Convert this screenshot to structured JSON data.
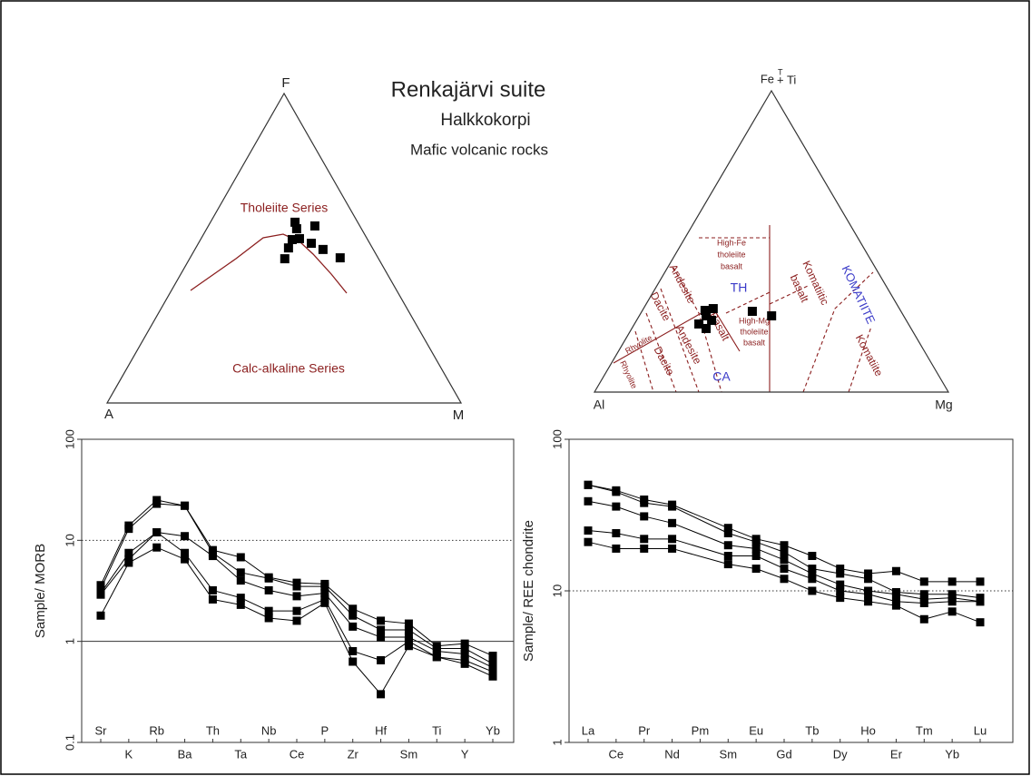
{
  "header": {
    "title": "Renkajärvi suite",
    "subtitle": "Halkkokorpi",
    "caption": "Mafic volcanic rocks"
  },
  "chart_data": [
    {
      "type": "ternary",
      "labels": {
        "top": "F",
        "left": "A",
        "right": "M"
      },
      "top": [
        58.4,
        56.3,
        57.2,
        53.1,
        52.8,
        51.6,
        50.1,
        49.6,
        46.6,
        46.9
      ],
      "left": [
        17.7,
        18.3,
        12.7,
        19.1,
        21.3,
        16.5,
        23.7,
        14.2,
        26.5,
        10.7
      ],
      "right": [
        23.9,
        25.4,
        30.1,
        27.8,
        25.9,
        31.9,
        26.2,
        36.2,
        26.9,
        42.4
      ],
      "color": "#000000",
      "field_labels": [
        "Tholeiite Series",
        "Calc-alkaline Series"
      ]
    },
    {
      "type": "ternary",
      "labels": {
        "top": "Fe",
        "top_sup": "T",
        "top_suffix": "+ Ti",
        "left": "Al",
        "right": "Mg"
      },
      "top": [
        27.1,
        27.7,
        25.3,
        23.8,
        22.6,
        21.1,
        26.8,
        25.3
      ],
      "left": [
        55.2,
        52.6,
        55.8,
        55.0,
        59.2,
        57.9,
        42.0,
        37.3
      ],
      "right": [
        17.7,
        19.7,
        18.9,
        21.2,
        18.2,
        21.0,
        31.2,
        37.4
      ],
      "color": "#000000",
      "field_labels": [
        "Rhyolite",
        "Rhyolite",
        "Dacite",
        "Dacite",
        "Andesite",
        "Andesite",
        "Basalt",
        "High-Fe",
        "tholeiite",
        "basalt",
        "TH",
        "High-Mg",
        "tholeiite",
        "basalt",
        "Komatiitic",
        "basalt",
        "KOMATIITE",
        "Komatiite",
        "CA"
      ]
    },
    {
      "type": "spider",
      "ylabel": "Sample/ MORB",
      "log_scale": true,
      "color": "#000000",
      "categories": [
        "Sr",
        "K",
        "Rb",
        "Ba",
        "Th",
        "Ta",
        "Nb",
        "Ce",
        "P",
        "Zr",
        "Hf",
        "Sm",
        "Ti",
        "Y",
        "Yb"
      ],
      "ylim": [
        0.1,
        100
      ],
      "yticks": [
        0.1,
        1,
        10,
        100
      ],
      "reference_lines": [
        {
          "value": 1,
          "style": "solid"
        },
        {
          "value": 10,
          "style": "dotted"
        }
      ],
      "series": [
        {
          "values": [
            3.6,
            14,
            25,
            22,
            8,
            6.8,
            4.3,
            3.8,
            3.7,
            2.1,
            1.6,
            1.5,
            0.9,
            0.95,
            0.72
          ]
        },
        {
          "values": [
            3.3,
            13,
            23,
            22,
            7.5,
            4.8,
            4.2,
            3.5,
            3.5,
            1.8,
            1.3,
            1.3,
            0.85,
            0.85,
            0.6
          ]
        },
        {
          "values": [
            3.0,
            7.5,
            12,
            11,
            7,
            4,
            3.2,
            2.8,
            3.0,
            1.4,
            1.1,
            1.1,
            0.8,
            0.75,
            0.55
          ]
        },
        {
          "values": [
            2.9,
            6.5,
            12,
            7.5,
            3.2,
            2.7,
            2.0,
            2.0,
            2.6,
            0.8,
            0.65,
            1.0,
            0.7,
            0.65,
            0.5
          ]
        },
        {
          "values": [
            1.8,
            6,
            8.5,
            6.5,
            2.6,
            2.3,
            1.7,
            1.6,
            2.4,
            0.63,
            0.3,
            0.9,
            0.7,
            0.6,
            0.45
          ]
        }
      ]
    },
    {
      "type": "spider",
      "ylabel": "Sample/ REE chondrite",
      "log_scale": true,
      "color": "#000000",
      "categories": [
        "La",
        "Ce",
        "Pr",
        "Nd",
        "Pm",
        "Sm",
        "Eu",
        "Gd",
        "Tb",
        "Dy",
        "Ho",
        "Er",
        "Tm",
        "Yb",
        "Lu"
      ],
      "ylim": [
        1,
        100
      ],
      "yticks": [
        1,
        10,
        100
      ],
      "reference_lines": [
        {
          "value": 10,
          "style": "dotted"
        }
      ],
      "series": [
        {
          "values": [
            50,
            46,
            40,
            37,
            null,
            26,
            22,
            20,
            17,
            14,
            13,
            13.5,
            11.5,
            11.5,
            11.5
          ]
        },
        {
          "values": [
            50,
            45,
            38,
            36,
            null,
            24,
            21,
            18,
            14,
            13,
            12,
            9.8,
            9.5,
            9.5,
            9
          ]
        },
        {
          "values": [
            39,
            36,
            31,
            28,
            null,
            20,
            19,
            16,
            13,
            11,
            10,
            9.5,
            8.8,
            9,
            8.5
          ]
        },
        {
          "values": [
            25,
            24,
            22,
            22,
            null,
            17,
            17,
            14,
            12,
            10,
            9.5,
            8.5,
            8.3,
            8.5,
            8.5
          ]
        },
        {
          "values": [
            21,
            19,
            19,
            19,
            null,
            15,
            14,
            12,
            10,
            9,
            8.5,
            8,
            6.5,
            7.3,
            6.2
          ]
        }
      ]
    }
  ]
}
